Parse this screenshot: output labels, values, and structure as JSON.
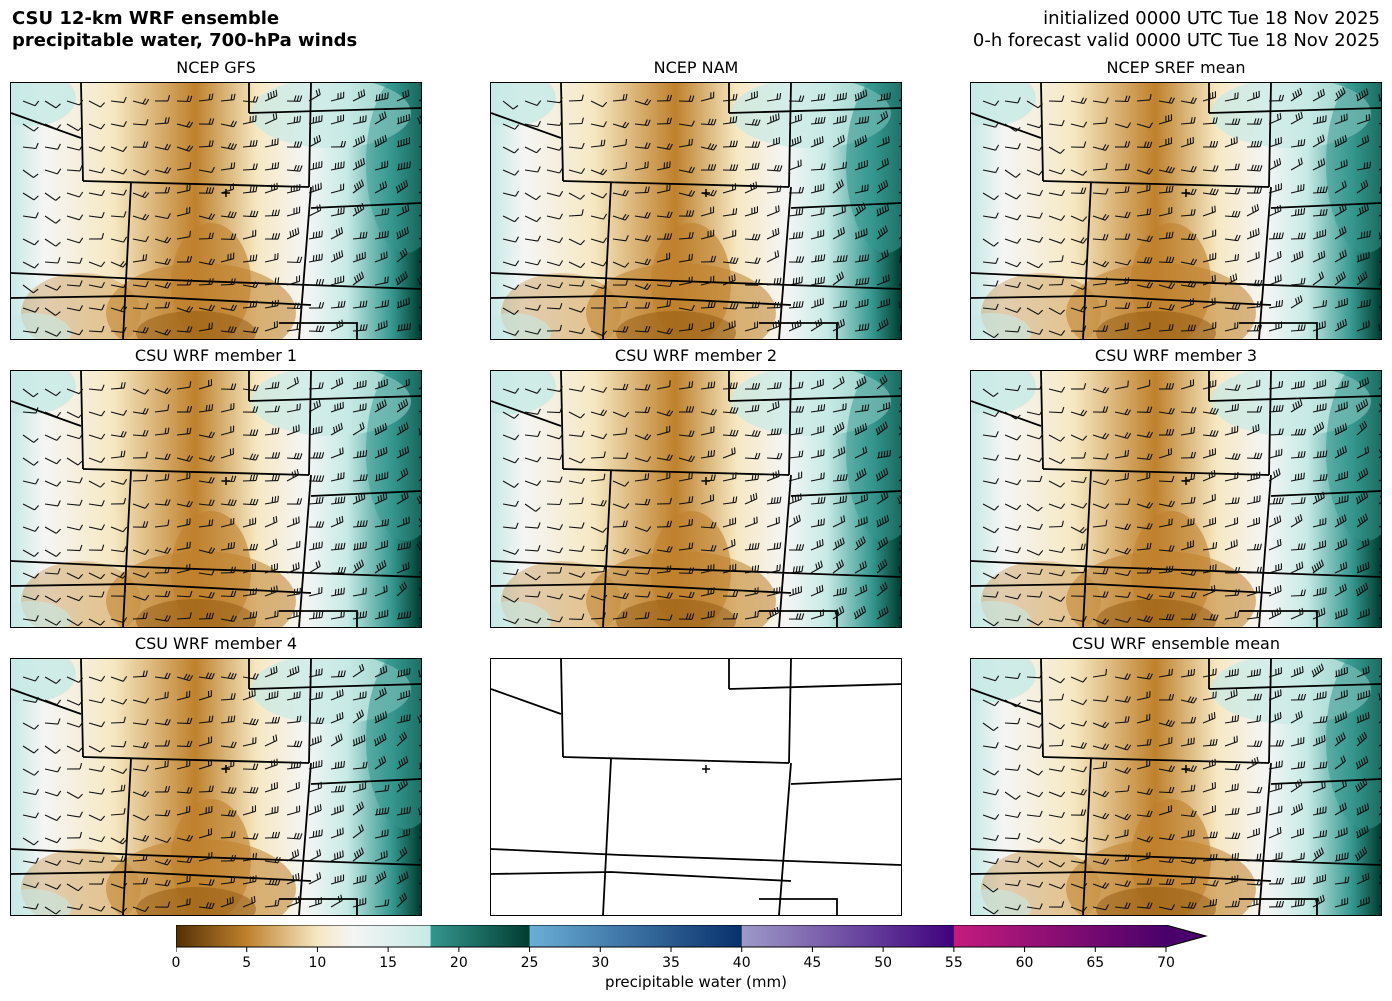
{
  "header": {
    "title_line1": "CSU 12-km WRF ensemble",
    "title_line2": "precipitable water, 700-hPa winds",
    "init_line": "initialized 0000 UTC Tue 18 Nov 2025",
    "valid_line": "0-h forecast valid 0000 UTC Tue 18 Nov 2025"
  },
  "panels": [
    {
      "title": "NCEP GFS",
      "filled": true,
      "moist_east": 0.8
    },
    {
      "title": "NCEP NAM",
      "filled": true,
      "moist_east": 1.0
    },
    {
      "title": "NCEP SREF mean",
      "filled": true,
      "moist_east": 0.9
    },
    {
      "title": "CSU WRF member 1",
      "filled": true,
      "moist_east": 0.8
    },
    {
      "title": "CSU WRF member 2",
      "filled": true,
      "moist_east": 0.85
    },
    {
      "title": "CSU WRF member 3",
      "filled": true,
      "moist_east": 0.9
    },
    {
      "title": "CSU WRF member 4",
      "filled": true,
      "moist_east": 0.95
    },
    {
      "title": "",
      "filled": false,
      "moist_east": 0
    },
    {
      "title": "CSU WRF ensemble mean",
      "filled": true,
      "moist_east": 0.9
    }
  ],
  "colorbar": {
    "label": "precipitable water (mm)",
    "ticks": [
      "0",
      "5",
      "10",
      "15",
      "20",
      "25",
      "30",
      "35",
      "40",
      "45",
      "50",
      "55",
      "60",
      "65",
      "70"
    ],
    "range": [
      0,
      70
    ],
    "extend": "max",
    "colors": {
      "dry_dark": "#543005",
      "dry_mid": "#bf812d",
      "dry_light": "#f6e8c3",
      "neutral": "#f5f5f5",
      "moist_light": "#c7eae5",
      "moist_mid": "#35978f",
      "moist_dark": "#003c30",
      "blue_light": "#6aaed6",
      "blue_dark": "#08306b",
      "purple_light": "#9e9ac8",
      "purple_dark": "#3f007d",
      "magenta_light": "#c51b7d",
      "magenta_dark": "#49006a"
    }
  }
}
